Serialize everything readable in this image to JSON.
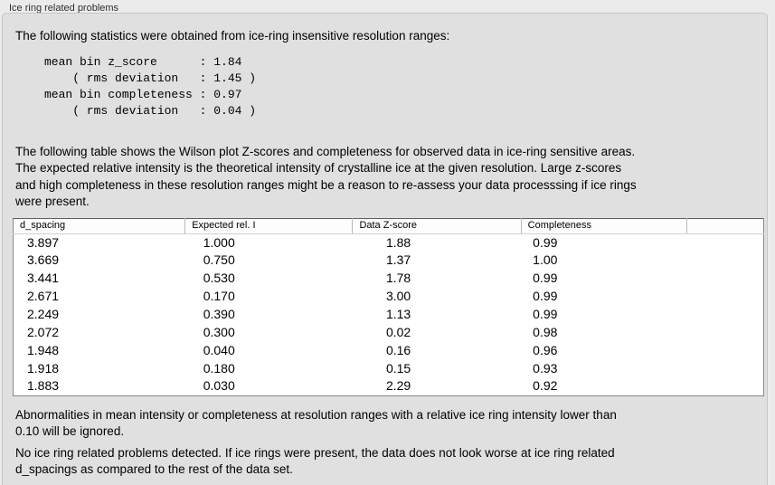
{
  "panel": {
    "title": "Ice ring related problems"
  },
  "intro": "The following statistics were obtained from ice-ring insensitive resolution ranges:",
  "stats_block": {
    "lines": [
      "mean bin z_score      : 1.84",
      "    ( rms deviation   : 1.45 )",
      "mean bin completeness : 0.97",
      "    ( rms deviation   : 0.04 )"
    ]
  },
  "description": {
    "lines": [
      "The following table shows the Wilson plot Z-scores and completeness for observed data in ice-ring sensitive areas.",
      "The expected relative intensity is the theoretical intensity of crystalline ice at the given resolution. Large z-scores",
      "and high completeness in these resolution ranges might be a reason to re-assess your data processsing if ice rings",
      "were present."
    ]
  },
  "table": {
    "headers": [
      "d_spacing",
      "Expected rel. I",
      "Data Z-score",
      "Completeness",
      ""
    ],
    "rows": [
      [
        "3.897",
        "1.000",
        "1.88",
        "0.99"
      ],
      [
        "3.669",
        "0.750",
        "1.37",
        "1.00"
      ],
      [
        "3.441",
        "0.530",
        "1.78",
        "0.99"
      ],
      [
        "2.671",
        "0.170",
        "3.00",
        "0.99"
      ],
      [
        "2.249",
        "0.390",
        "1.13",
        "0.99"
      ],
      [
        "2.072",
        "0.300",
        "0.02",
        "0.98"
      ],
      [
        "1.948",
        "0.040",
        "0.16",
        "0.96"
      ],
      [
        "1.918",
        "0.180",
        "0.15",
        "0.93"
      ],
      [
        "1.883",
        "0.030",
        "2.29",
        "0.92"
      ]
    ]
  },
  "note": {
    "lines": [
      "Abnormalities in mean intensity or completeness at resolution ranges with a relative ice ring intensity lower than",
      "0.10 will be ignored."
    ]
  },
  "conclusion": {
    "lines": [
      "No ice ring related problems detected. If ice rings were present, the data does not look worse at ice ring related",
      "d_spacings as compared to the rest of the data set."
    ]
  }
}
